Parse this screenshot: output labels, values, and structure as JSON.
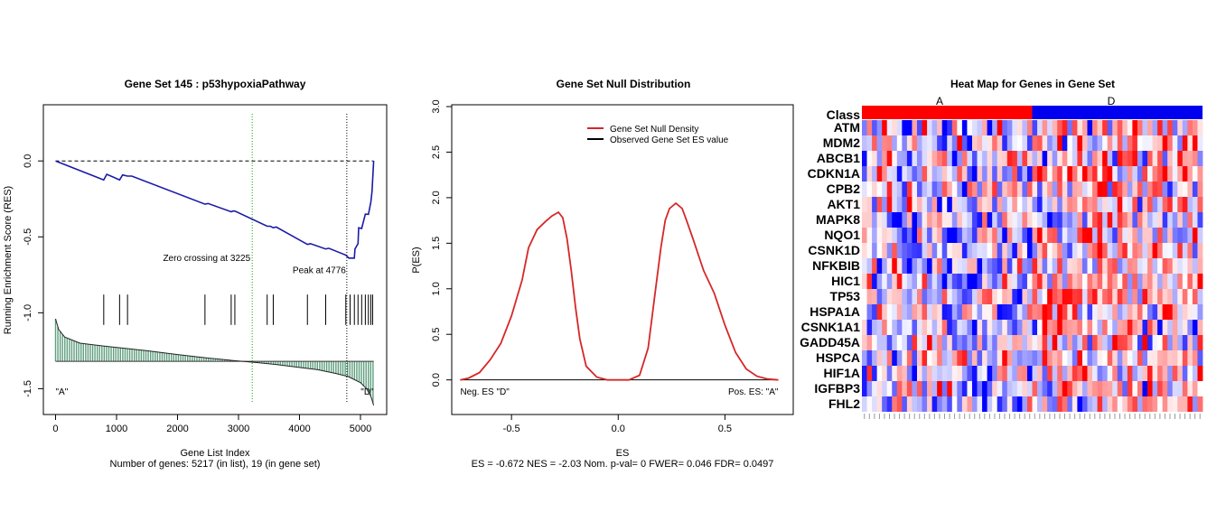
{
  "chart_data": [
    {
      "id": "enrichment",
      "type": "line",
      "title": "Gene Set  145 : p53hypoxiaPathway",
      "xlabel": "Gene List Index",
      "xlabel2": "Number of genes: 5217 (in list), 19 (in gene set)",
      "ylabel": "Running Enrichment Score (RES)",
      "xlim": [
        -200,
        5430
      ],
      "ylim": [
        -1.67,
        0.37
      ],
      "xticks": [
        0,
        1000,
        2000,
        3000,
        4000,
        5000
      ],
      "xtick_labels": [
        "0",
        "1000",
        "2000",
        "3000",
        "4000",
        "5000"
      ],
      "yticks": [
        0.0,
        -0.5,
        -1.0,
        -1.5
      ],
      "ytick_labels": [
        "0.0",
        "-0.5",
        "-1.0",
        "-1.5"
      ],
      "colors": {
        "res_line": "#1a1aa6",
        "zero_line": "#00aa00",
        "metric_fill": "#5e9e7e",
        "axis": "#000000"
      },
      "res_series": {
        "name": "RES",
        "x": [
          0,
          790,
          840,
          1050,
          1100,
          1180,
          1250,
          2450,
          2500,
          2880,
          2910,
          2940,
          3470,
          3520,
          3570,
          3620,
          4130,
          4180,
          4430,
          4480,
          4760,
          4810,
          4900,
          4910,
          4960,
          4970,
          5020,
          5080,
          5130,
          5170,
          5190,
          5200,
          5217
        ],
        "y": [
          0.0,
          -0.125,
          -0.088,
          -0.125,
          -0.092,
          -0.1,
          -0.1,
          -0.285,
          -0.28,
          -0.335,
          -0.33,
          -0.33,
          -0.43,
          -0.43,
          -0.44,
          -0.435,
          -0.55,
          -0.545,
          -0.58,
          -0.575,
          -0.62,
          -0.64,
          -0.64,
          -0.58,
          -0.545,
          -0.44,
          -0.445,
          -0.35,
          -0.352,
          -0.27,
          -0.2,
          -0.12,
          0.0
        ]
      },
      "zero_level": 0.0,
      "hits": [
        790,
        1050,
        1180,
        2450,
        2880,
        2940,
        3470,
        3570,
        4130,
        4430,
        4760,
        4830,
        4900,
        4960,
        5020,
        5080,
        5130,
        5170,
        5200
      ],
      "hit_band": [
        -0.88,
        -1.08
      ],
      "metric_baseline": -1.32,
      "metric_profile": {
        "x": [
          0,
          50,
          150,
          400,
          800,
          1500,
          2000,
          2500,
          3000,
          3300,
          3600,
          4000,
          4300,
          4600,
          4800,
          5000,
          5100,
          5170,
          5217
        ],
        "y": [
          -1.04,
          -1.11,
          -1.16,
          -1.2,
          -1.22,
          -1.25,
          -1.275,
          -1.298,
          -1.318,
          -1.328,
          -1.34,
          -1.36,
          -1.375,
          -1.4,
          -1.42,
          -1.46,
          -1.5,
          -1.55,
          -1.61
        ]
      },
      "zero_crossing_x": 3225,
      "peak_x": 4776,
      "annotations": {
        "zero_crossing": "Zero crossing at 3225",
        "peak": "Peak at 4776",
        "class_a": "\"A\"",
        "class_d": "\"D\""
      },
      "zero_crossing_text_y": -0.66,
      "peak_text_y": -0.74,
      "class_text_y": -1.54
    },
    {
      "id": "null-distribution",
      "type": "line",
      "title": "Gene Set Null Distribution",
      "xlabel": "ES",
      "ylabel": "P(ES)",
      "stats_line": "ES = -0.672  NES = -2.03 Nom. p-val= 0 FWER= 0.046 FDR= 0.0497",
      "xlim": [
        -0.78,
        0.82
      ],
      "ylim": [
        -0.38,
        3.02
      ],
      "xticks": [
        -0.5,
        0.0,
        0.5
      ],
      "xtick_labels": [
        "-0.5",
        "0.0",
        "0.5"
      ],
      "yticks": [
        0.0,
        0.5,
        1.0,
        1.5,
        2.0,
        2.5,
        3.0
      ],
      "ytick_labels": [
        "0.0",
        "0.5",
        "1.0",
        "1.5",
        "2.0",
        "2.5",
        "3.0"
      ],
      "series": [
        {
          "name": "Gene Set Null Density",
          "color": "#d62728",
          "x": [
            -0.74,
            -0.7,
            -0.65,
            -0.6,
            -0.55,
            -0.5,
            -0.45,
            -0.42,
            -0.38,
            -0.34,
            -0.31,
            -0.28,
            -0.26,
            -0.24,
            -0.22,
            -0.2,
            -0.18,
            -0.15,
            -0.1,
            -0.05,
            0.0,
            0.05,
            0.1,
            0.14,
            0.17,
            0.2,
            0.22,
            0.24,
            0.27,
            0.3,
            0.32,
            0.35,
            0.4,
            0.45,
            0.5,
            0.55,
            0.6,
            0.65,
            0.7,
            0.75
          ],
          "y": [
            0.0,
            0.02,
            0.08,
            0.22,
            0.4,
            0.7,
            1.1,
            1.45,
            1.65,
            1.74,
            1.8,
            1.84,
            1.78,
            1.55,
            1.2,
            0.8,
            0.45,
            0.15,
            0.03,
            0.0,
            0.0,
            0.0,
            0.05,
            0.35,
            0.9,
            1.45,
            1.75,
            1.88,
            1.94,
            1.88,
            1.75,
            1.55,
            1.2,
            0.95,
            0.6,
            0.3,
            0.12,
            0.04,
            0.01,
            0.0
          ]
        }
      ],
      "observed_es": -0.672,
      "legend": [
        {
          "label": "Gene Set Null Density",
          "color": "#d62728"
        },
        {
          "label": "Observed Gene Set ES value",
          "color": "#000000"
        }
      ],
      "legend_position": "top-right",
      "annotations": {
        "neg": "Neg. ES \"D\"",
        "pos": "Pos. ES: \"A\""
      },
      "annotation_y": -0.16
    },
    {
      "id": "heatmap",
      "type": "heatmap",
      "title": "Heat Map for Genes in Gene Set",
      "class_row_label": "Class",
      "classes": [
        {
          "name": "A",
          "color": "#ff0000"
        },
        {
          "name": "D",
          "color": "#0000ee"
        }
      ],
      "genes": [
        "ATM",
        "MDM2",
        "ABCB1",
        "CDKN1A",
        "CPB2",
        "AKT1",
        "MAPK8",
        "NQO1",
        "CSNK1D",
        "NFKBIB",
        "HIC1",
        "TP53",
        "HSPA1A",
        "CSNK1A1",
        "GADD45A",
        "HSPCA",
        "HIF1A",
        "IGFBP3",
        "FHL2"
      ],
      "n_samples_per_class": [
        34,
        34
      ],
      "value_range": [
        -2.5,
        2.5
      ],
      "color_low": "#0000ff",
      "color_mid": "#ffffff",
      "color_high": "#ff0000"
    }
  ]
}
